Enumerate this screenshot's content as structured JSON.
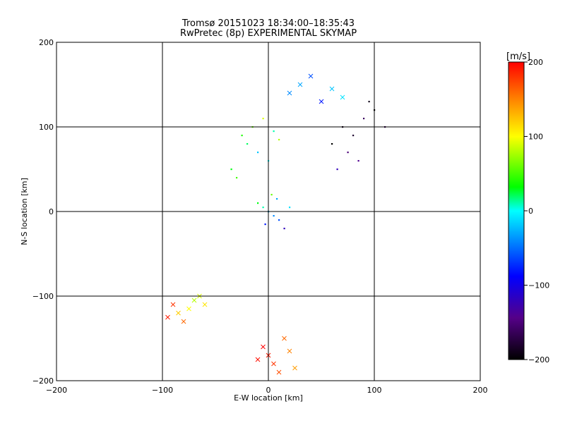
{
  "chart_data": {
    "type": "scatter",
    "title": "Tromsø 20151023 18:34:00–18:35:43",
    "subtitle": "RwPretec (8p) EXPERIMENTAL SKYMAP",
    "xlabel": "E-W location [km]",
    "ylabel": "N-S location [km]",
    "xlim": [
      -200,
      200
    ],
    "ylim": [
      -200,
      200
    ],
    "xticks": [
      -200,
      -100,
      0,
      100,
      200
    ],
    "yticks": [
      -200,
      -100,
      0,
      100,
      200
    ],
    "grid_lines": {
      "x": [
        -100,
        0,
        100
      ],
      "y": [
        -100,
        0,
        100
      ]
    },
    "markers": [
      "small dot",
      "cross"
    ],
    "colorbar": {
      "label": "[m/s]",
      "range": [
        -200,
        200
      ],
      "ticks": [
        200,
        100,
        0,
        -100,
        -200
      ],
      "colormap": [
        "#000000",
        "#550088",
        "#0000ff",
        "#00ffff",
        "#00ff00",
        "#ffff00",
        "#ff8800",
        "#ff0000"
      ]
    },
    "series": [
      {
        "x": [
          0,
          5,
          -5,
          10,
          -10,
          3,
          8,
          -3,
          15,
          20
        ],
        "y": [
          0,
          -5,
          5,
          -10,
          10,
          20,
          15,
          -15,
          -20,
          5
        ],
        "velocity": [
          -20,
          -40,
          10,
          -60,
          30,
          60,
          -30,
          -80,
          -120,
          -10
        ],
        "marker": "dot"
      },
      {
        "x": [
          -20,
          -25,
          -15,
          -10,
          0,
          10,
          -30,
          -35,
          -5,
          5
        ],
        "y": [
          80,
          90,
          100,
          70,
          60,
          85,
          40,
          50,
          110,
          95
        ],
        "velocity": [
          20,
          40,
          60,
          -20,
          0,
          80,
          50,
          30,
          90,
          10
        ],
        "marker": "dot"
      },
      {
        "x": [
          60,
          70,
          80,
          90,
          100,
          110,
          75,
          85,
          95,
          65
        ],
        "y": [
          80,
          100,
          90,
          110,
          120,
          100,
          70,
          60,
          130,
          50
        ],
        "velocity": [
          -200,
          -190,
          -180,
          -160,
          -200,
          -170,
          -150,
          -140,
          -190,
          -120
        ],
        "marker": "dot"
      },
      {
        "x": [
          -90,
          -85,
          -80,
          -75,
          -70,
          -60,
          -95,
          -65
        ],
        "y": [
          -110,
          -120,
          -130,
          -115,
          -105,
          -110,
          -125,
          -100
        ],
        "velocity": [
          180,
          120,
          160,
          100,
          80,
          110,
          190,
          90
        ],
        "marker": "cross"
      },
      {
        "x": [
          -5,
          0,
          5,
          10,
          15,
          -10,
          20,
          25
        ],
        "y": [
          -160,
          -170,
          -180,
          -190,
          -150,
          -175,
          -165,
          -185
        ],
        "velocity": [
          200,
          190,
          180,
          170,
          160,
          195,
          150,
          140
        ],
        "marker": "cross"
      },
      {
        "x": [
          20,
          30,
          40,
          50,
          60,
          70
        ],
        "y": [
          140,
          150,
          160,
          130,
          145,
          135
        ],
        "velocity": [
          -40,
          -30,
          -60,
          -80,
          -20,
          -10
        ],
        "marker": "cross"
      }
    ]
  }
}
